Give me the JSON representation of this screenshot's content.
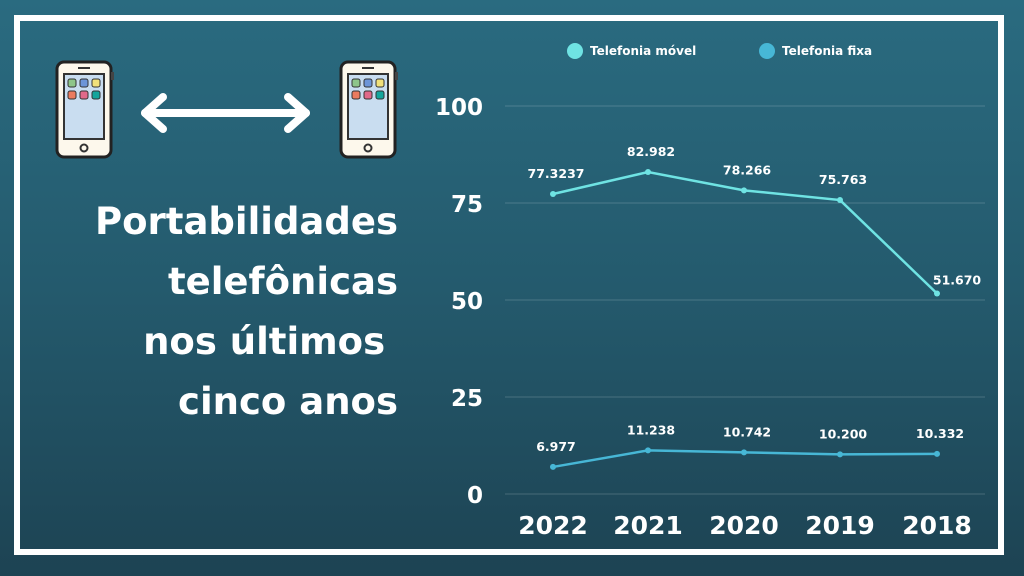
{
  "title_lines": [
    "Portabilidades",
    "telefônicas",
    "nos últimos ",
    "cinco anos"
  ],
  "chart_data": {
    "type": "line",
    "title": "Portabilidades telefônicas nos últimos cinco anos",
    "categories": [
      "2022",
      "2021",
      "2020",
      "2019",
      "2018"
    ],
    "series": [
      {
        "name": "Telefonia móvel",
        "color": "#6fe3e3",
        "values": [
          77.3237,
          82.982,
          78.266,
          75.763,
          51.67
        ],
        "labels": [
          "77.3237",
          "82.982",
          "78.266",
          "75.763",
          "51.670"
        ]
      },
      {
        "name": "Telefonia fixa",
        "color": "#47b7d6",
        "values": [
          6.977,
          11.238,
          10.742,
          10.2,
          10.332
        ],
        "labels": [
          "6.977",
          "11.238",
          "10.742",
          "10.200",
          "10.332"
        ]
      }
    ],
    "yticks": [
      "0",
      "25",
      "50",
      "75",
      "100"
    ],
    "ylim": [
      0,
      100
    ],
    "grid": true,
    "legend": "top",
    "xlabel": "",
    "ylabel": ""
  },
  "colors": {
    "background": "#245a6d",
    "frame": "#ffffff"
  }
}
